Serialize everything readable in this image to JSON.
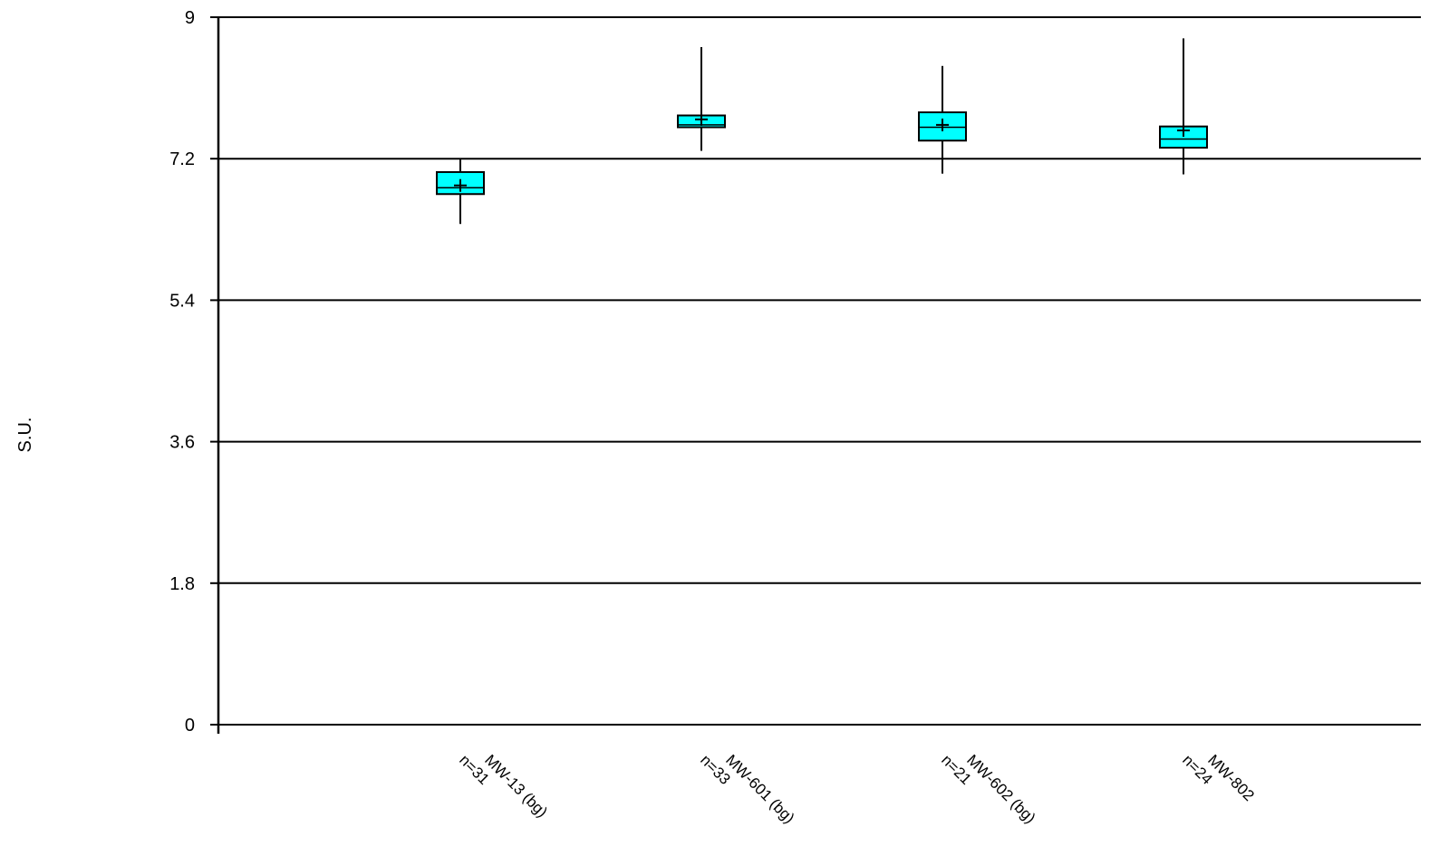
{
  "chart_data": {
    "type": "box",
    "title": "",
    "xlabel": "",
    "ylabel": "S.U.",
    "ylim": [
      0,
      9
    ],
    "yticks": [
      0,
      1.8,
      3.6,
      5.4,
      7.2,
      9
    ],
    "ytick_labels": [
      "0",
      "1.8",
      "3.6",
      "5.4",
      "7.2",
      "9"
    ],
    "grid": "horizontal",
    "box_color": "#00ffff",
    "categories": [
      {
        "name": "MW-13 (bg)",
        "n_label": "n=31",
        "min": 6.37,
        "q1": 6.75,
        "median": 6.83,
        "q3": 7.03,
        "max": 7.19,
        "mean": 6.86
      },
      {
        "name": "MW-601 (bg)",
        "n_label": "n=33",
        "min": 7.3,
        "q1": 7.6,
        "median": 7.63,
        "q3": 7.75,
        "max": 8.62,
        "mean": 7.7
      },
      {
        "name": "MW-602 (bg)",
        "n_label": "n=21",
        "min": 7.01,
        "q1": 7.43,
        "median": 7.6,
        "q3": 7.79,
        "max": 8.38,
        "mean": 7.63
      },
      {
        "name": "MW-802",
        "n_label": "n=24",
        "min": 7.0,
        "q1": 7.34,
        "median": 7.45,
        "q3": 7.61,
        "max": 8.73,
        "mean": 7.56
      }
    ]
  }
}
